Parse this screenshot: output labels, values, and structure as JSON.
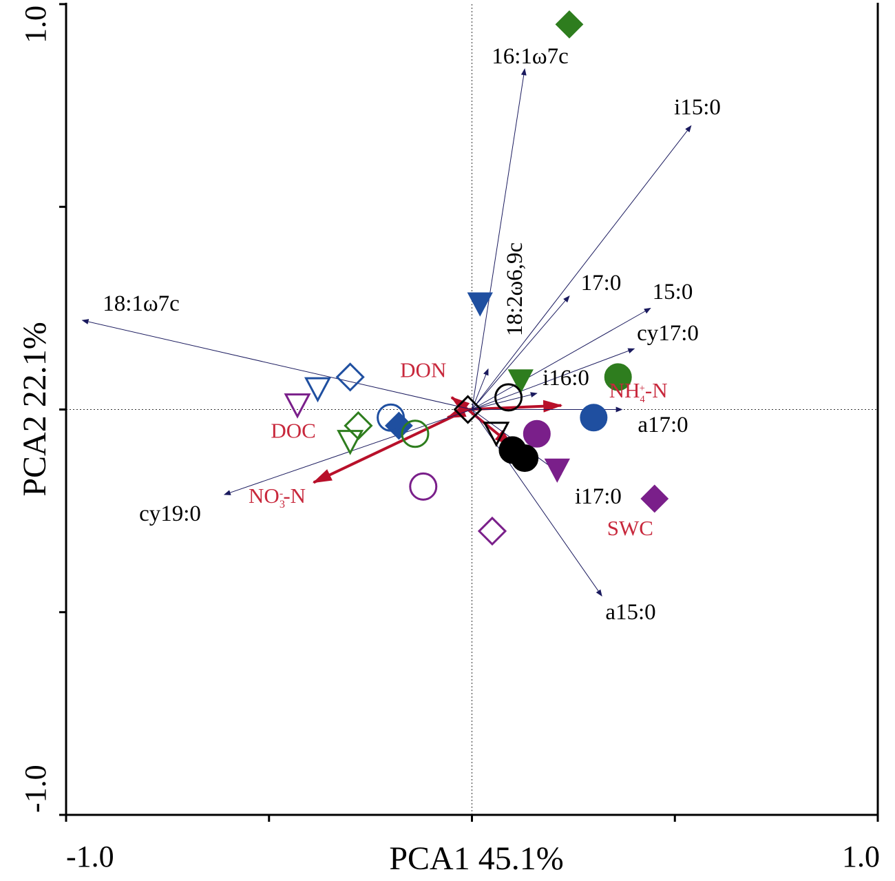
{
  "chart_data": {
    "type": "scatter",
    "subtype": "PCA biplot",
    "xlabel": "PCA1 45.1%",
    "ylabel": "PCA2 22.1%",
    "xlim": [
      -1.0,
      1.0
    ],
    "ylim": [
      -1.0,
      1.0
    ],
    "x_tick_labels": [
      "-1.0",
      "1.0"
    ],
    "y_tick_labels": [
      "-1.0",
      "1.0"
    ],
    "x_ticks": [
      -1.0,
      -0.5,
      0.0,
      0.5,
      1.0
    ],
    "y_ticks": [
      -1.0,
      -0.5,
      0.0,
      0.5,
      1.0
    ],
    "reference_lines": {
      "x": 0,
      "y": 0,
      "style": "dotted"
    },
    "species_arrows": [
      {
        "label": "16:1ω7c",
        "x": 0.13,
        "y": 0.84
      },
      {
        "label": "i15:0",
        "x": 0.54,
        "y": 0.7
      },
      {
        "label": "18:1ω7c",
        "x": -0.96,
        "y": 0.22
      },
      {
        "label": "18:2ω6,9c",
        "x": 0.04,
        "y": 0.1
      },
      {
        "label": "17:0",
        "x": 0.24,
        "y": 0.28
      },
      {
        "label": "15:0",
        "x": 0.44,
        "y": 0.25
      },
      {
        "label": "cy17:0",
        "x": 0.4,
        "y": 0.15
      },
      {
        "label": "i16:0",
        "x": 0.16,
        "y": 0.04
      },
      {
        "label": "a17:0",
        "x": 0.37,
        "y": 0.0
      },
      {
        "label": "i17:0",
        "x": 0.22,
        "y": -0.16
      },
      {
        "label": "a15:0",
        "x": 0.32,
        "y": -0.46
      },
      {
        "label": "cy19:0",
        "x": -0.61,
        "y": -0.21
      }
    ],
    "env_arrows": [
      {
        "label": "DON",
        "x": -0.05,
        "y": 0.03
      },
      {
        "label": "DOC",
        "x": -0.06,
        "y": -0.02
      },
      {
        "label": "NO3−-N",
        "x": -0.39,
        "y": -0.18,
        "label_main": "NO",
        "label_sub": "3",
        "label_sup": "-",
        "label_tail": "-N"
      },
      {
        "label": "NH4+-N",
        "x": 0.22,
        "y": 0.01,
        "label_main": "NH",
        "label_sub": "4",
        "label_sup": "+",
        "label_tail": "-N"
      },
      {
        "label": "SWC",
        "x": 0.1,
        "y": -0.09
      }
    ],
    "env_label_positions": {
      "DON": [
        -0.12,
        0.08
      ],
      "DOC": [
        -0.44,
        -0.07
      ],
      "NO3−-N": [
        -0.48,
        -0.23
      ],
      "NH4+-N": [
        0.41,
        0.03
      ],
      "SWC": [
        0.39,
        -0.31
      ]
    },
    "samples": [
      {
        "shape": "diamond",
        "fill": "filled",
        "color": "#2e7d1e",
        "x": 0.24,
        "y": 0.95
      },
      {
        "shape": "triangle",
        "fill": "filled",
        "color": "#1f4fa0",
        "x": 0.02,
        "y": 0.26
      },
      {
        "shape": "triangle",
        "fill": "filled",
        "color": "#2e7d1e",
        "x": 0.12,
        "y": 0.07
      },
      {
        "shape": "circle",
        "fill": "filled",
        "color": "#2e7d1e",
        "x": 0.36,
        "y": 0.08
      },
      {
        "shape": "circle",
        "fill": "filled",
        "color": "#1f4fa0",
        "x": 0.3,
        "y": -0.02
      },
      {
        "shape": "circle",
        "fill": "filled",
        "color": "#7a1f8a",
        "x": 0.16,
        "y": -0.06
      },
      {
        "shape": "triangle",
        "fill": "filled",
        "color": "#7a1f8a",
        "x": 0.21,
        "y": -0.15
      },
      {
        "shape": "diamond",
        "fill": "filled",
        "color": "#7a1f8a",
        "x": 0.45,
        "y": -0.22
      },
      {
        "shape": "diamond",
        "fill": "filled",
        "color": "#1f4fa0",
        "x": -0.18,
        "y": -0.04
      },
      {
        "shape": "circle",
        "fill": "filled",
        "color": "#000000",
        "x": 0.1,
        "y": -0.1
      },
      {
        "shape": "circle",
        "fill": "filled",
        "color": "#000000",
        "x": 0.13,
        "y": -0.12
      },
      {
        "shape": "diamond",
        "fill": "open",
        "color": "#1f4fa0",
        "x": -0.3,
        "y": 0.08
      },
      {
        "shape": "triangle",
        "fill": "open",
        "color": "#1f4fa0",
        "x": -0.38,
        "y": 0.05
      },
      {
        "shape": "triangle",
        "fill": "open",
        "color": "#7a1f8a",
        "x": -0.43,
        "y": 0.01
      },
      {
        "shape": "diamond",
        "fill": "open",
        "color": "#2e7d1e",
        "x": -0.28,
        "y": -0.04
      },
      {
        "shape": "triangle",
        "fill": "open",
        "color": "#2e7d1e",
        "x": -0.3,
        "y": -0.08
      },
      {
        "shape": "circle",
        "fill": "open",
        "color": "#1f4fa0",
        "x": -0.2,
        "y": -0.02
      },
      {
        "shape": "circle",
        "fill": "open",
        "color": "#2e7d1e",
        "x": -0.14,
        "y": -0.06
      },
      {
        "shape": "circle",
        "fill": "open",
        "color": "#7a1f8a",
        "x": -0.12,
        "y": -0.19
      },
      {
        "shape": "diamond",
        "fill": "open",
        "color": "#7a1f8a",
        "x": 0.05,
        "y": -0.3
      },
      {
        "shape": "circle",
        "fill": "open",
        "color": "#000000",
        "x": 0.09,
        "y": 0.03
      },
      {
        "shape": "diamond",
        "fill": "open",
        "color": "#000000",
        "x": -0.01,
        "y": 0.0
      },
      {
        "shape": "triangle",
        "fill": "open",
        "color": "#000000",
        "x": 0.06,
        "y": -0.06
      }
    ]
  },
  "colors": {
    "species_arrow": "#1a1a5e",
    "env_arrow": "#b8102a",
    "env_label": "#c8283c"
  }
}
